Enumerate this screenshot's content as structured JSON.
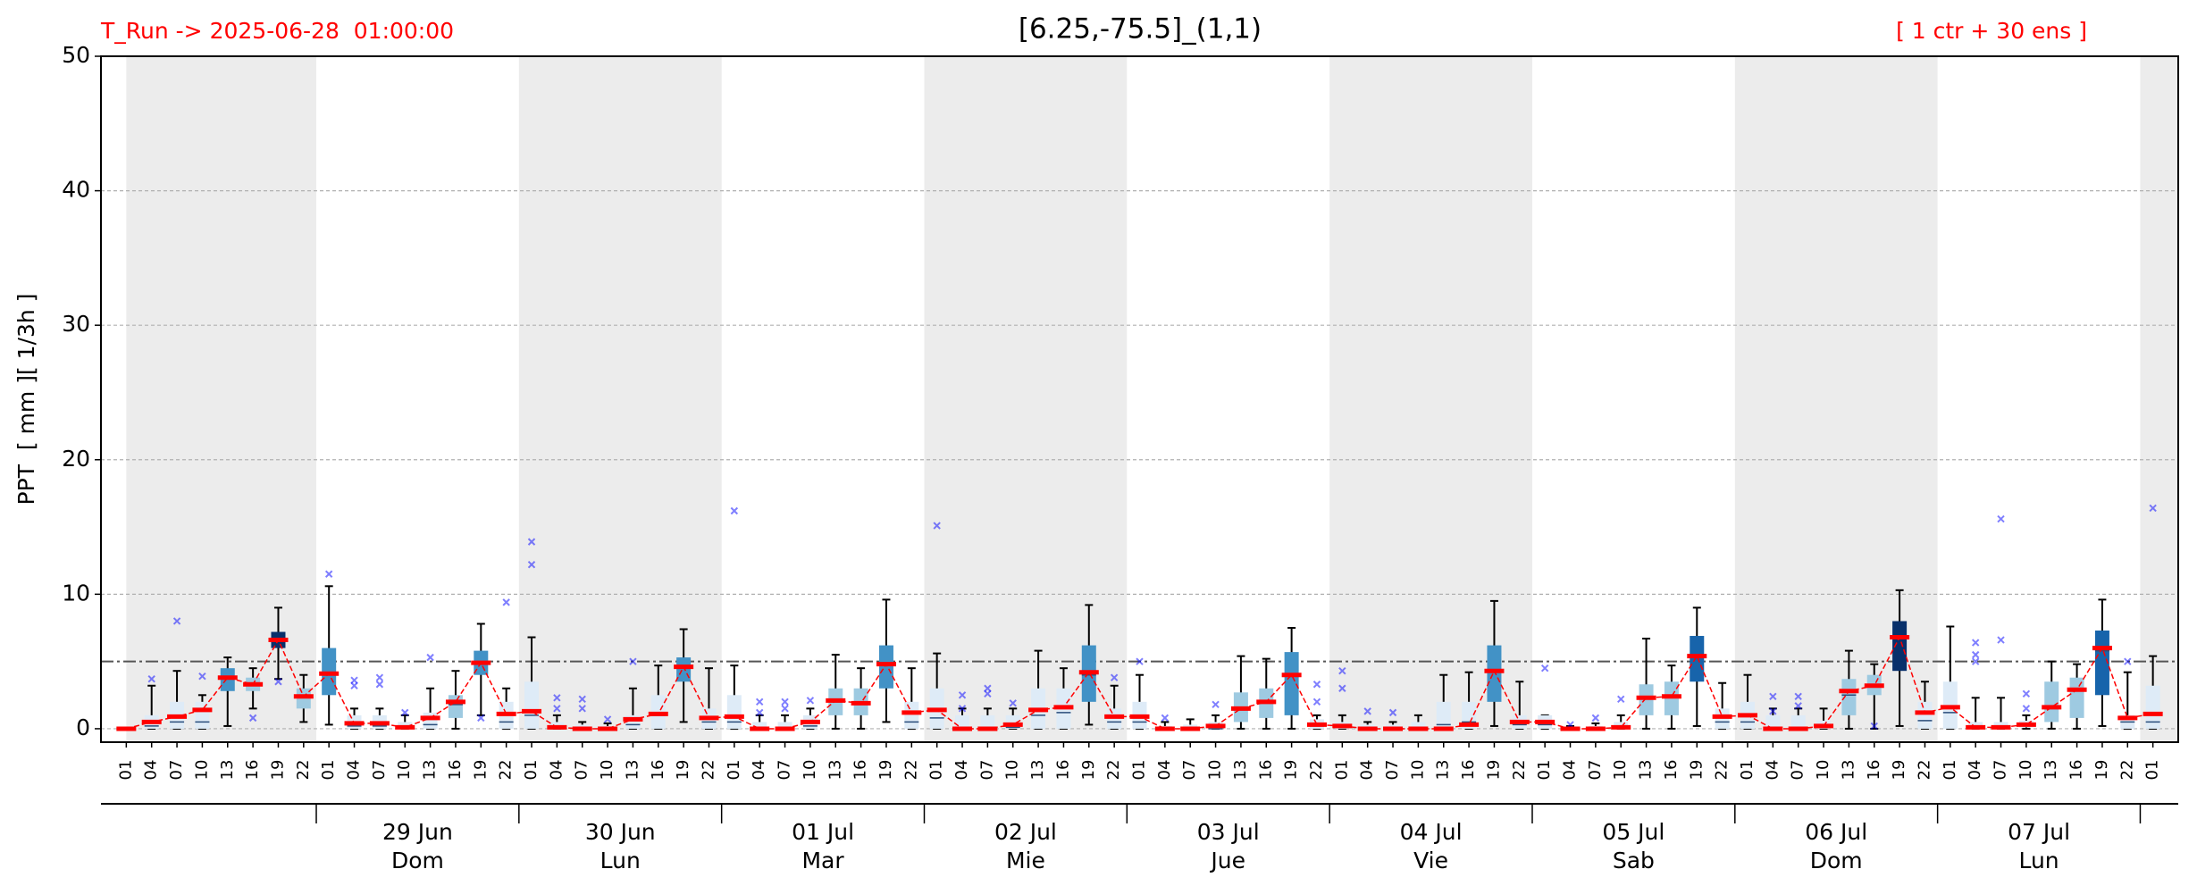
{
  "chart_data": {
    "type": "boxplot",
    "title": "[6.25,-75.5]_(1,1)",
    "run_label": "T_Run -> 2025-06-28  01:00:00",
    "members_label": "[ 1 ctr + 30 ens ]",
    "y_label": "PPT  [ mm ][ 1/3h ]",
    "ylim": [
      -1,
      50
    ],
    "yticks": [
      0,
      10,
      20,
      30,
      40,
      50
    ],
    "grid": true,
    "threshold": 5,
    "control_color": "#ff0000",
    "flier_color": "#0000ff",
    "shade_color": "#ececec",
    "categories": [
      "01",
      "04",
      "07",
      "10",
      "13",
      "16",
      "19",
      "22",
      "01",
      "04",
      "07",
      "10",
      "13",
      "16",
      "19",
      "22",
      "01",
      "04",
      "07",
      "10",
      "13",
      "16",
      "19",
      "22",
      "01",
      "04",
      "07",
      "10",
      "13",
      "16",
      "19",
      "22",
      "01",
      "04",
      "07",
      "10",
      "13",
      "16",
      "19",
      "22",
      "01",
      "04",
      "07",
      "10",
      "13",
      "16",
      "19",
      "22",
      "01",
      "04",
      "07",
      "10",
      "13",
      "16",
      "19",
      "22",
      "01",
      "04",
      "07",
      "10",
      "13",
      "16",
      "19",
      "22",
      "01",
      "04",
      "07",
      "10",
      "13",
      "16",
      "19",
      "22",
      "01",
      "04",
      "07",
      "10",
      "13",
      "16",
      "19",
      "22",
      "01"
    ],
    "days": [
      {
        "date": "29 Jun",
        "weekday": "Dom"
      },
      {
        "date": "30 Jun",
        "weekday": "Lun"
      },
      {
        "date": "01 Jul",
        "weekday": "Mar"
      },
      {
        "date": "02 Jul",
        "weekday": "Mie"
      },
      {
        "date": "03 Jul",
        "weekday": "Jue"
      },
      {
        "date": "04 Jul",
        "weekday": "Vie"
      },
      {
        "date": "05 Jul",
        "weekday": "Sab"
      },
      {
        "date": "06 Jul",
        "weekday": "Dom"
      },
      {
        "date": "07 Jul",
        "weekday": "Lun"
      }
    ],
    "boxes": [
      {
        "low": 0,
        "q1": 0,
        "med": 0,
        "q3": 0,
        "high": 0,
        "ctrl": 0,
        "color": "#deebf7",
        "fliers": []
      },
      {
        "low": 0,
        "q1": 0,
        "med": 0.2,
        "q3": 1,
        "high": 3.2,
        "ctrl": 0.5,
        "color": "#deebf7",
        "fliers": [
          3.7
        ]
      },
      {
        "low": 0,
        "q1": 0,
        "med": 0.5,
        "q3": 2,
        "high": 4.3,
        "ctrl": 0.9,
        "color": "#deebf7",
        "fliers": [
          8
        ]
      },
      {
        "low": 0,
        "q1": 0,
        "med": 0.5,
        "q3": 2,
        "high": 2.5,
        "ctrl": 1.4,
        "color": "#deebf7",
        "fliers": [
          3.9
        ]
      },
      {
        "low": 0.2,
        "q1": 2.8,
        "med": 3.8,
        "q3": 4.5,
        "high": 5.3,
        "ctrl": 3.8,
        "color": "#4292c6",
        "fliers": []
      },
      {
        "low": 1.5,
        "q1": 2.8,
        "med": 3.3,
        "q3": 3.8,
        "high": 4.5,
        "ctrl": 3.3,
        "color": "#9ecae1",
        "fliers": [
          0.8
        ]
      },
      {
        "low": 3.7,
        "q1": 6,
        "med": 6.6,
        "q3": 7.2,
        "high": 9,
        "ctrl": 6.6,
        "color": "#08306b",
        "fliers": [
          3.5
        ]
      },
      {
        "low": 0.5,
        "q1": 1.5,
        "med": 2.3,
        "q3": 3,
        "high": 4,
        "ctrl": 2.4,
        "color": "#9ecae1",
        "fliers": []
      },
      {
        "low": 0.3,
        "q1": 2.5,
        "med": 4,
        "q3": 6,
        "high": 10.6,
        "ctrl": 4.1,
        "color": "#4292c6",
        "fliers": [
          11.5
        ]
      },
      {
        "low": 0,
        "q1": 0,
        "med": 0.2,
        "q3": 1,
        "high": 1.5,
        "ctrl": 0.4,
        "color": "#deebf7",
        "fliers": [
          3.2,
          3.6
        ]
      },
      {
        "low": 0,
        "q1": 0,
        "med": 0.2,
        "q3": 1,
        "high": 1.5,
        "ctrl": 0.4,
        "color": "#deebf7",
        "fliers": [
          3.3,
          3.8
        ]
      },
      {
        "low": 0,
        "q1": 0,
        "med": 0.1,
        "q3": 0.5,
        "high": 1,
        "ctrl": 0.1,
        "color": "#deebf7",
        "fliers": [
          1.2
        ]
      },
      {
        "low": 0,
        "q1": 0,
        "med": 0.3,
        "q3": 1.2,
        "high": 3,
        "ctrl": 0.8,
        "color": "#deebf7",
        "fliers": [
          5.3
        ]
      },
      {
        "low": 0,
        "q1": 0.8,
        "med": 1.8,
        "q3": 2.5,
        "high": 4.3,
        "ctrl": 2,
        "color": "#9ecae1",
        "fliers": []
      },
      {
        "low": 1,
        "q1": 4,
        "med": 4.9,
        "q3": 5.8,
        "high": 7.8,
        "ctrl": 4.9,
        "color": "#4292c6",
        "fliers": [
          0.8
        ]
      },
      {
        "low": 0,
        "q1": 0,
        "med": 0.5,
        "q3": 2,
        "high": 3,
        "ctrl": 1.1,
        "color": "#deebf7",
        "fliers": [
          9.4
        ]
      },
      {
        "low": 0,
        "q1": 0,
        "med": 1,
        "q3": 3.5,
        "high": 6.8,
        "ctrl": 1.3,
        "color": "#deebf7",
        "fliers": [
          12.2,
          13.9
        ]
      },
      {
        "low": 0,
        "q1": 0,
        "med": 0,
        "q3": 0.5,
        "high": 1,
        "ctrl": 0.1,
        "color": "#deebf7",
        "fliers": [
          1.5,
          2.3
        ]
      },
      {
        "low": 0,
        "q1": 0,
        "med": 0,
        "q3": 0.3,
        "high": 0.5,
        "ctrl": 0,
        "color": "#deebf7",
        "fliers": [
          1.5,
          2.2
        ]
      },
      {
        "low": 0,
        "q1": 0,
        "med": 0,
        "q3": 0.2,
        "high": 0.4,
        "ctrl": 0,
        "color": "#deebf7",
        "fliers": [
          0.7
        ]
      },
      {
        "low": 0,
        "q1": 0,
        "med": 0.3,
        "q3": 1,
        "high": 3,
        "ctrl": 0.7,
        "color": "#deebf7",
        "fliers": [
          5
        ]
      },
      {
        "low": 0,
        "q1": 0,
        "med": 1,
        "q3": 2.5,
        "high": 4.7,
        "ctrl": 1.1,
        "color": "#deebf7",
        "fliers": []
      },
      {
        "low": 0.5,
        "q1": 3.5,
        "med": 4.5,
        "q3": 5.3,
        "high": 7.4,
        "ctrl": 4.6,
        "color": "#4292c6",
        "fliers": []
      },
      {
        "low": 0,
        "q1": 0,
        "med": 0.5,
        "q3": 1.5,
        "high": 4.5,
        "ctrl": 0.8,
        "color": "#deebf7",
        "fliers": []
      },
      {
        "low": 0,
        "q1": 0,
        "med": 0.5,
        "q3": 2.5,
        "high": 4.7,
        "ctrl": 0.9,
        "color": "#deebf7",
        "fliers": [
          16.2
        ]
      },
      {
        "low": 0,
        "q1": 0,
        "med": 0,
        "q3": 0.5,
        "high": 1,
        "ctrl": 0,
        "color": "#deebf7",
        "fliers": [
          1.2,
          2
        ]
      },
      {
        "low": 0,
        "q1": 0,
        "med": 0,
        "q3": 0.5,
        "high": 1,
        "ctrl": 0,
        "color": "#deebf7",
        "fliers": [
          1.5,
          2
        ]
      },
      {
        "low": 0,
        "q1": 0,
        "med": 0.2,
        "q3": 1,
        "high": 1.5,
        "ctrl": 0.5,
        "color": "#deebf7",
        "fliers": [
          2.1
        ]
      },
      {
        "low": 0,
        "q1": 1,
        "med": 2,
        "q3": 3,
        "high": 5.5,
        "ctrl": 2.1,
        "color": "#9ecae1",
        "fliers": []
      },
      {
        "low": 0,
        "q1": 1,
        "med": 2,
        "q3": 3,
        "high": 4.5,
        "ctrl": 1.9,
        "color": "#9ecae1",
        "fliers": []
      },
      {
        "low": 0.5,
        "q1": 3,
        "med": 4.8,
        "q3": 6.2,
        "high": 9.6,
        "ctrl": 4.8,
        "color": "#4292c6",
        "fliers": []
      },
      {
        "low": 0,
        "q1": 0,
        "med": 0.5,
        "q3": 2,
        "high": 4.5,
        "ctrl": 1.2,
        "color": "#deebf7",
        "fliers": []
      },
      {
        "low": 0,
        "q1": 0,
        "med": 0.8,
        "q3": 3,
        "high": 5.6,
        "ctrl": 1.4,
        "color": "#deebf7",
        "fliers": [
          15.1
        ]
      },
      {
        "low": 0,
        "q1": 0,
        "med": 0,
        "q3": 1,
        "high": 1.5,
        "ctrl": 0,
        "color": "#deebf7",
        "fliers": [
          1.5,
          2.5
        ]
      },
      {
        "low": 0,
        "q1": 0,
        "med": 0,
        "q3": 1,
        "high": 1.5,
        "ctrl": 0,
        "color": "#deebf7",
        "fliers": [
          2.6,
          3
        ]
      },
      {
        "low": 0,
        "q1": 0,
        "med": 0.1,
        "q3": 1,
        "high": 1.5,
        "ctrl": 0.3,
        "color": "#deebf7",
        "fliers": [
          1.9
        ]
      },
      {
        "low": 0,
        "q1": 0,
        "med": 1,
        "q3": 3,
        "high": 5.8,
        "ctrl": 1.4,
        "color": "#deebf7",
        "fliers": []
      },
      {
        "low": 0,
        "q1": 0,
        "med": 1.2,
        "q3": 3,
        "high": 4.5,
        "ctrl": 1.6,
        "color": "#deebf7",
        "fliers": []
      },
      {
        "low": 0.3,
        "q1": 2,
        "med": 4,
        "q3": 6.2,
        "high": 9.2,
        "ctrl": 4.2,
        "color": "#4292c6",
        "fliers": []
      },
      {
        "low": 0,
        "q1": 0,
        "med": 0.5,
        "q3": 1.5,
        "high": 3.2,
        "ctrl": 0.9,
        "color": "#deebf7",
        "fliers": [
          3.8
        ]
      },
      {
        "low": 0,
        "q1": 0,
        "med": 0.5,
        "q3": 2,
        "high": 4,
        "ctrl": 0.9,
        "color": "#deebf7",
        "fliers": [
          5
        ]
      },
      {
        "low": 0,
        "q1": 0,
        "med": 0,
        "q3": 0.2,
        "high": 0.5,
        "ctrl": 0,
        "color": "#deebf7",
        "fliers": [
          0.8
        ]
      },
      {
        "low": 0,
        "q1": 0,
        "med": 0,
        "q3": 0.3,
        "high": 0.7,
        "ctrl": 0,
        "color": "#deebf7",
        "fliers": []
      },
      {
        "low": 0,
        "q1": 0,
        "med": 0,
        "q3": 0.5,
        "high": 1,
        "ctrl": 0.2,
        "color": "#deebf7",
        "fliers": [
          1.8
        ]
      },
      {
        "low": 0,
        "q1": 0.5,
        "med": 1.5,
        "q3": 2.7,
        "high": 5.4,
        "ctrl": 1.5,
        "color": "#9ecae1",
        "fliers": []
      },
      {
        "low": 0,
        "q1": 0.8,
        "med": 2,
        "q3": 3,
        "high": 5.2,
        "ctrl": 2,
        "color": "#9ecae1",
        "fliers": []
      },
      {
        "low": 0,
        "q1": 1,
        "med": 4,
        "q3": 5.7,
        "high": 7.5,
        "ctrl": 4,
        "color": "#4292c6",
        "fliers": []
      },
      {
        "low": 0,
        "q1": 0,
        "med": 0.2,
        "q3": 0.7,
        "high": 1,
        "ctrl": 0.3,
        "color": "#deebf7",
        "fliers": [
          2,
          3.3
        ]
      },
      {
        "low": 0,
        "q1": 0,
        "med": 0.1,
        "q3": 0.5,
        "high": 1,
        "ctrl": 0.2,
        "color": "#deebf7",
        "fliers": [
          3,
          4.3
        ]
      },
      {
        "low": 0,
        "q1": 0,
        "med": 0,
        "q3": 0.3,
        "high": 0.5,
        "ctrl": 0,
        "color": "#deebf7",
        "fliers": [
          1.3
        ]
      },
      {
        "low": 0,
        "q1": 0,
        "med": 0,
        "q3": 0.3,
        "high": 0.5,
        "ctrl": 0,
        "color": "#deebf7",
        "fliers": [
          1.2
        ]
      },
      {
        "low": 0,
        "q1": 0,
        "med": 0,
        "q3": 0.5,
        "high": 1,
        "ctrl": 0,
        "color": "#deebf7",
        "fliers": []
      },
      {
        "low": 0,
        "q1": 0,
        "med": 0.3,
        "q3": 2,
        "high": 4,
        "ctrl": 0,
        "color": "#deebf7",
        "fliers": []
      },
      {
        "low": 0,
        "q1": 0,
        "med": 0.5,
        "q3": 2,
        "high": 4.2,
        "ctrl": 0.3,
        "color": "#deebf7",
        "fliers": []
      },
      {
        "low": 0.2,
        "q1": 2,
        "med": 4.2,
        "q3": 6.2,
        "high": 9.5,
        "ctrl": 4.3,
        "color": "#4292c6",
        "fliers": []
      },
      {
        "low": 0,
        "q1": 0,
        "med": 0.3,
        "q3": 1,
        "high": 3.5,
        "ctrl": 0.5,
        "color": "#deebf7",
        "fliers": []
      },
      {
        "low": 0,
        "q1": 0,
        "med": 0.3,
        "q3": 1,
        "high": 1,
        "ctrl": 0.5,
        "color": "#deebf7",
        "fliers": [
          4.5
        ]
      },
      {
        "low": 0,
        "q1": 0,
        "med": 0,
        "q3": 0.1,
        "high": 0.2,
        "ctrl": 0,
        "color": "#deebf7",
        "fliers": [
          0.3
        ]
      },
      {
        "low": 0,
        "q1": 0,
        "med": 0,
        "q3": 0.2,
        "high": 0.4,
        "ctrl": 0,
        "color": "#deebf7",
        "fliers": [
          0.8
        ]
      },
      {
        "low": 0,
        "q1": 0,
        "med": 0.1,
        "q3": 0.5,
        "high": 1,
        "ctrl": 0.1,
        "color": "#deebf7",
        "fliers": [
          2.2
        ]
      },
      {
        "low": 0,
        "q1": 1,
        "med": 2.2,
        "q3": 3.3,
        "high": 6.7,
        "ctrl": 2.3,
        "color": "#9ecae1",
        "fliers": []
      },
      {
        "low": 0,
        "q1": 1,
        "med": 2.3,
        "q3": 3.5,
        "high": 4.7,
        "ctrl": 2.4,
        "color": "#9ecae1",
        "fliers": []
      },
      {
        "low": 0.2,
        "q1": 3.5,
        "med": 5.3,
        "q3": 6.9,
        "high": 9,
        "ctrl": 5.4,
        "color": "#1764ab",
        "fliers": []
      },
      {
        "low": 0,
        "q1": 0,
        "med": 0.5,
        "q3": 1.5,
        "high": 3.4,
        "ctrl": 0.9,
        "color": "#deebf7",
        "fliers": []
      },
      {
        "low": 0,
        "q1": 0,
        "med": 0.5,
        "q3": 2,
        "high": 4,
        "ctrl": 1,
        "color": "#deebf7",
        "fliers": []
      },
      {
        "low": 0,
        "q1": 0,
        "med": 0,
        "q3": 1,
        "high": 1.5,
        "ctrl": 0,
        "color": "#deebf7",
        "fliers": [
          1.3,
          2.4
        ]
      },
      {
        "low": 0,
        "q1": 0,
        "med": 0,
        "q3": 1,
        "high": 1.5,
        "ctrl": 0,
        "color": "#deebf7",
        "fliers": [
          1.7,
          2.4
        ]
      },
      {
        "low": 0,
        "q1": 0,
        "med": 0.1,
        "q3": 0.6,
        "high": 1.5,
        "ctrl": 0.2,
        "color": "#deebf7",
        "fliers": []
      },
      {
        "low": 0,
        "q1": 1,
        "med": 2.5,
        "q3": 3.7,
        "high": 5.8,
        "ctrl": 2.8,
        "color": "#9ecae1",
        "fliers": []
      },
      {
        "low": 0,
        "q1": 2.5,
        "med": 3.2,
        "q3": 4,
        "high": 4.8,
        "ctrl": 3.2,
        "color": "#9ecae1",
        "fliers": [
          0.2
        ]
      },
      {
        "low": 0.2,
        "q1": 4.3,
        "med": 6.8,
        "q3": 8,
        "high": 10.3,
        "ctrl": 6.8,
        "color": "#08306b",
        "fliers": []
      },
      {
        "low": 0,
        "q1": 0,
        "med": 0.6,
        "q3": 2,
        "high": 3.5,
        "ctrl": 1.2,
        "color": "#deebf7",
        "fliers": []
      },
      {
        "low": 0,
        "q1": 0,
        "med": 1.2,
        "q3": 3.5,
        "high": 7.6,
        "ctrl": 1.6,
        "color": "#deebf7",
        "fliers": []
      },
      {
        "low": 0,
        "q1": 0,
        "med": 0.1,
        "q3": 0.5,
        "high": 2.3,
        "ctrl": 0.1,
        "color": "#deebf7",
        "fliers": [
          5,
          5.5,
          6.4
        ]
      },
      {
        "low": 0,
        "q1": 0,
        "med": 0.1,
        "q3": 0.5,
        "high": 2.3,
        "ctrl": 0.1,
        "color": "#deebf7",
        "fliers": [
          6.6,
          15.6
        ]
      },
      {
        "low": 0,
        "q1": 0.1,
        "med": 0.3,
        "q3": 0.6,
        "high": 1,
        "ctrl": 0.3,
        "color": "#deebf7",
        "fliers": [
          1.5,
          2.6
        ]
      },
      {
        "low": 0,
        "q1": 0.5,
        "med": 1.5,
        "q3": 3.5,
        "high": 5,
        "ctrl": 1.6,
        "color": "#9ecae1",
        "fliers": []
      },
      {
        "low": 0,
        "q1": 0.8,
        "med": 2.8,
        "q3": 3.8,
        "high": 4.8,
        "ctrl": 2.9,
        "color": "#9ecae1",
        "fliers": []
      },
      {
        "low": 0.2,
        "q1": 2.5,
        "med": 5.8,
        "q3": 7.3,
        "high": 9.6,
        "ctrl": 6,
        "color": "#1764ab",
        "fliers": []
      },
      {
        "low": 0,
        "q1": 0,
        "med": 0.5,
        "q3": 1,
        "high": 4.2,
        "ctrl": 0.8,
        "color": "#deebf7",
        "fliers": [
          5
        ]
      },
      {
        "low": 0,
        "q1": 0,
        "med": 0.5,
        "q3": 3.2,
        "high": 5.4,
        "ctrl": 1.1,
        "color": "#deebf7",
        "fliers": [
          16.4
        ]
      }
    ]
  }
}
